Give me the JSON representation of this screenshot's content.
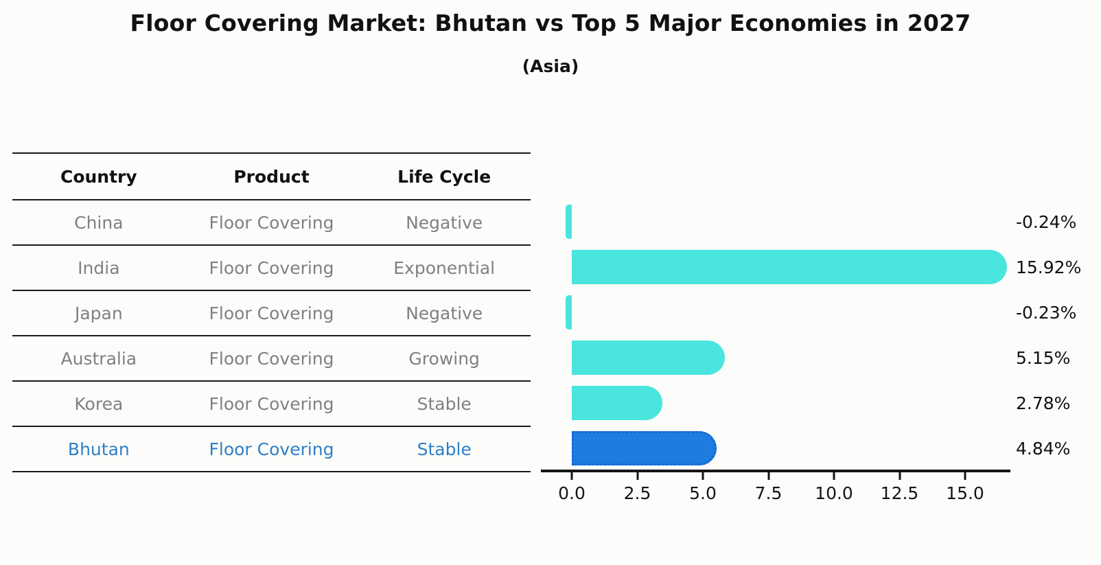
{
  "title": "Floor Covering Market: Bhutan vs Top 5 Major Economies in 2027",
  "subtitle": "(Asia)",
  "table": {
    "headers": [
      "Country",
      "Product",
      "Life Cycle"
    ],
    "rows": [
      {
        "country": "China",
        "product": "Floor Covering",
        "life_cycle": "Negative"
      },
      {
        "country": "India",
        "product": "Floor Covering",
        "life_cycle": "Exponential"
      },
      {
        "country": "Japan",
        "product": "Floor Covering",
        "life_cycle": "Negative"
      },
      {
        "country": "Australia",
        "product": "Floor Covering",
        "life_cycle": "Growing"
      },
      {
        "country": "Korea",
        "product": "Floor Covering",
        "life_cycle": "Stable"
      },
      {
        "country": "Bhutan",
        "product": "Floor Covering",
        "life_cycle": "Stable"
      }
    ],
    "highlighted_row": "Bhutan"
  },
  "chart_data": {
    "type": "bar",
    "orientation": "horizontal",
    "title": "Floor Covering Market: Bhutan vs Top 5 Major Economies in 2027",
    "subtitle": "(Asia)",
    "categories": [
      "China",
      "India",
      "Japan",
      "Australia",
      "Korea",
      "Bhutan"
    ],
    "values": [
      -0.24,
      15.92,
      -0.23,
      5.15,
      2.78,
      4.84
    ],
    "value_labels": [
      "-0.24%",
      "15.92%",
      "-0.23%",
      "5.15%",
      "2.78%",
      "4.84%"
    ],
    "x_ticks": [
      0.0,
      2.5,
      5.0,
      7.5,
      10.0,
      12.5,
      15.0
    ],
    "x_tick_labels": [
      "0.0",
      "2.5",
      "5.0",
      "7.5",
      "10.0",
      "12.5",
      "15.0"
    ],
    "xlim": [
      -1.2,
      16.7
    ],
    "grid": false,
    "legend": false,
    "highlight_index": 5,
    "colors": {
      "bar_default": "#4ae5de",
      "bar_highlight": "#1e7ce0",
      "bar_highlight_border": "#1565ce",
      "highlight_text": "#2e7fc7",
      "table_text": "#808080",
      "axis": "#151515"
    }
  }
}
